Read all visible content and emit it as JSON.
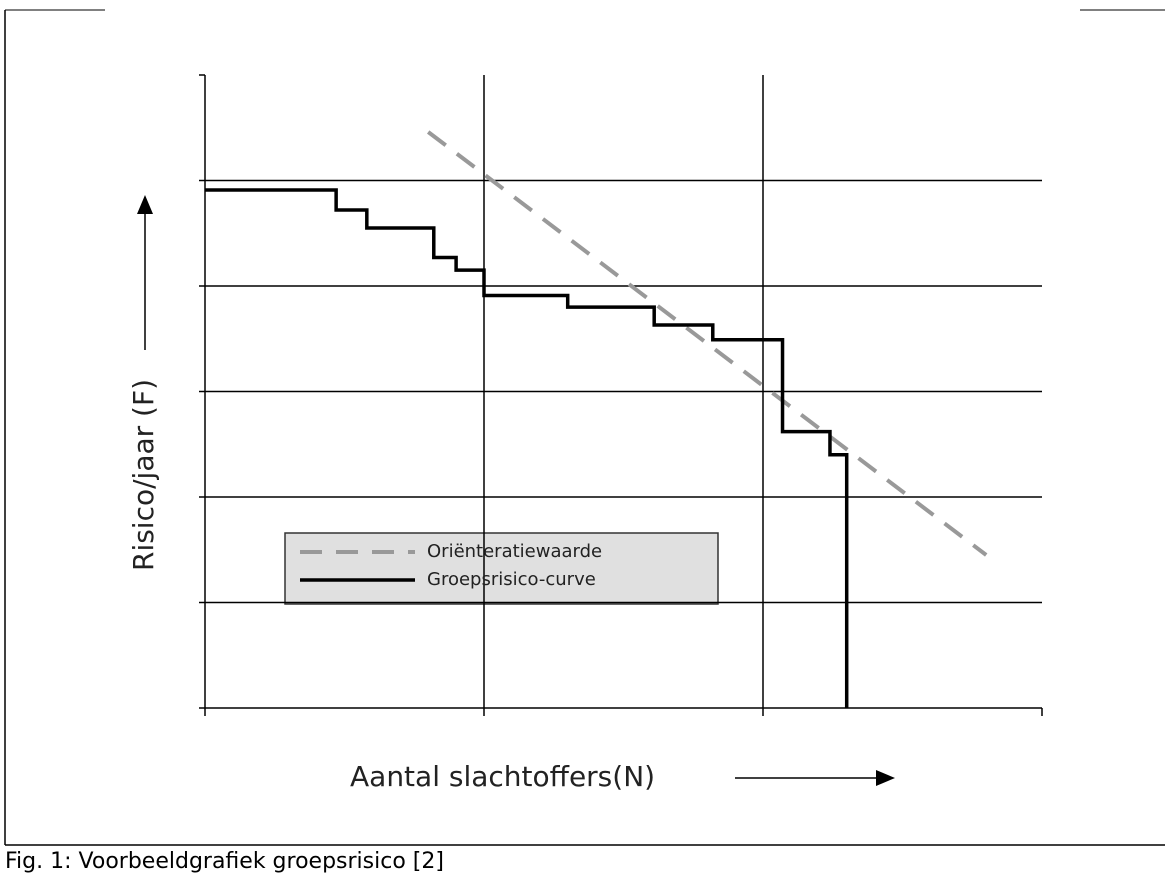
{
  "chart_data": {
    "type": "line",
    "xlabel": "Aantal slachtoffers(N)",
    "ylabel": "Risico/jaar (F)",
    "caption": "Fig. 1: Voorbeeldgrafiek groepsrisico [2]",
    "xlim": [
      0,
      3
    ],
    "ylim": [
      0,
      6
    ],
    "xticks": [
      0,
      1,
      2,
      3
    ],
    "yticks": [
      0,
      1,
      2,
      3,
      4,
      5,
      6
    ],
    "grid": true,
    "series": [
      {
        "name": "Oriënteratiewaarde",
        "color": "#999999",
        "dashed": true,
        "x": [
          0.8,
          2.8
        ],
        "values": [
          5.46,
          1.45
        ]
      },
      {
        "name": "Groepsrisico-curve",
        "color": "#000000",
        "dashed": false,
        "x": [
          0,
          0.47,
          0.47,
          0.58,
          0.58,
          0.82,
          0.82,
          0.9,
          0.9,
          1,
          1,
          1.3,
          1.3,
          1.61,
          1.61,
          1.82,
          1.82,
          2.07,
          2.07,
          2.24,
          2.24,
          2.3,
          2.3
        ],
        "values": [
          4.91,
          4.91,
          4.72,
          4.72,
          4.55,
          4.55,
          4.27,
          4.27,
          4.15,
          4.15,
          3.91,
          3.91,
          3.8,
          3.8,
          3.63,
          3.63,
          3.49,
          3.49,
          2.62,
          2.62,
          2.4,
          2.4,
          0
        ]
      }
    ]
  }
}
